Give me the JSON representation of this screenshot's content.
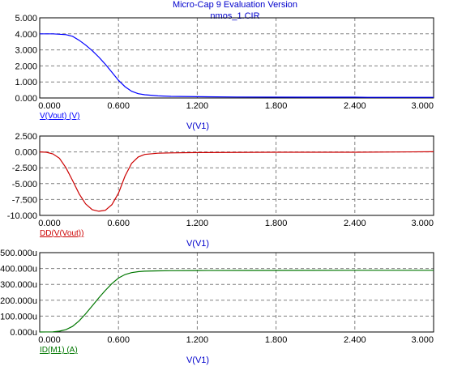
{
  "header": {
    "app_title": "Micro-Cap 9 Evaluation Version",
    "file_name": "nmos_1.CIR"
  },
  "colors": {
    "title": "#0000cc",
    "grid": "#808080",
    "frame": "#000000",
    "xlabel": "#0000cc"
  },
  "chart_data": [
    {
      "type": "line",
      "xlabel": "V(V1)",
      "xlim": [
        0,
        3
      ],
      "ylim": [
        0,
        5
      ],
      "x_ticks": [
        "0.000",
        "0.600",
        "1.200",
        "1.800",
        "2.400",
        "3.000"
      ],
      "y_ticks": [
        "0.000",
        "1.000",
        "2.000",
        "3.000",
        "4.000",
        "5.000"
      ],
      "grid": true,
      "series": [
        {
          "name": "V(Vout) (V)",
          "color": "#0000ff",
          "x": [
            0,
            0.1,
            0.2,
            0.25,
            0.3,
            0.35,
            0.4,
            0.45,
            0.5,
            0.55,
            0.6,
            0.65,
            0.7,
            0.75,
            0.8,
            0.9,
            1.0,
            1.2,
            1.5,
            2.0,
            2.4,
            2.5,
            3.0
          ],
          "y": [
            4.0,
            4.0,
            3.95,
            3.85,
            3.6,
            3.3,
            2.95,
            2.55,
            2.1,
            1.6,
            1.1,
            0.7,
            0.42,
            0.27,
            0.2,
            0.13,
            0.1,
            0.08,
            0.06,
            0.05,
            0.05,
            0.04,
            0.04
          ]
        }
      ]
    },
    {
      "type": "line",
      "xlabel": "V(V1)",
      "xlim": [
        0,
        3
      ],
      "ylim": [
        -10,
        2.5
      ],
      "x_ticks": [
        "0.000",
        "0.600",
        "1.200",
        "1.800",
        "2.400",
        "3.000"
      ],
      "y_ticks": [
        "-10.000",
        "-7.500",
        "-5.000",
        "-2.500",
        "0.000",
        "2.500"
      ],
      "grid": true,
      "series": [
        {
          "name": "DD(V(Vout))",
          "color": "#cc0000",
          "x": [
            0,
            0.05,
            0.1,
            0.15,
            0.2,
            0.25,
            0.3,
            0.35,
            0.4,
            0.45,
            0.5,
            0.55,
            0.6,
            0.65,
            0.7,
            0.75,
            0.8,
            0.9,
            1.0,
            1.2,
            1.8,
            2.4,
            3.0
          ],
          "y": [
            0,
            -0.05,
            -0.3,
            -1.0,
            -2.5,
            -4.5,
            -6.6,
            -8.2,
            -9.1,
            -9.35,
            -9.2,
            -8.3,
            -6.5,
            -3.8,
            -1.8,
            -0.8,
            -0.4,
            -0.2,
            -0.15,
            -0.1,
            -0.05,
            -0.05,
            0.02
          ]
        }
      ]
    },
    {
      "type": "line",
      "xlabel": "V(V1)",
      "xlim": [
        0,
        3
      ],
      "ylim": [
        0,
        500
      ],
      "x_ticks": [
        "0.000",
        "0.600",
        "1.200",
        "1.800",
        "2.400",
        "3.000"
      ],
      "y_ticks": [
        "0.000u",
        "100.000u",
        "200.000u",
        "300.000u",
        "400.000u",
        "500.000u"
      ],
      "grid": true,
      "series": [
        {
          "name": "ID(M1) (A)",
          "color": "#007700",
          "x": [
            0,
            0.1,
            0.15,
            0.2,
            0.25,
            0.3,
            0.35,
            0.4,
            0.45,
            0.5,
            0.55,
            0.6,
            0.65,
            0.7,
            0.75,
            0.8,
            0.9,
            1.0,
            1.2,
            1.6,
            2.4,
            3.0
          ],
          "y": [
            0,
            1,
            5,
            15,
            35,
            70,
            115,
            165,
            215,
            262,
            305,
            340,
            362,
            374,
            380,
            383,
            385,
            386,
            387,
            388,
            389,
            389
          ]
        }
      ]
    }
  ]
}
